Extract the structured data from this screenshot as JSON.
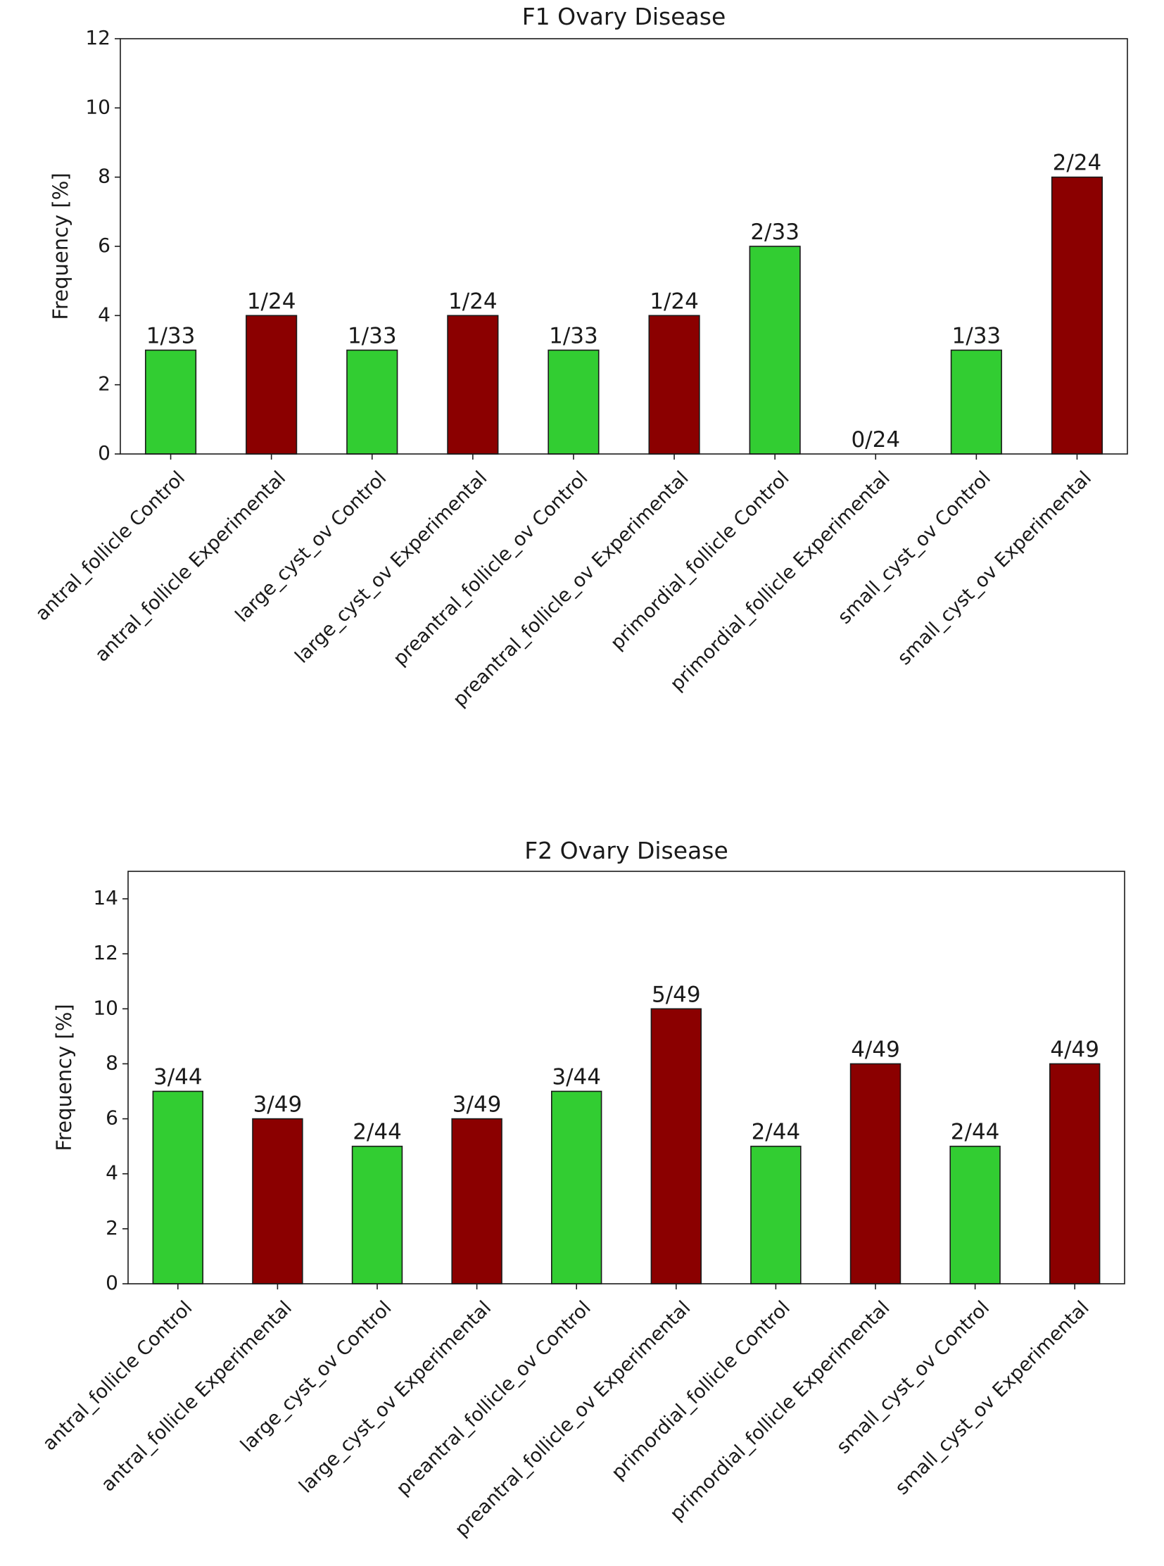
{
  "chart_data": [
    {
      "type": "bar",
      "title": "F1 Ovary Disease",
      "xlabel": "",
      "ylabel": "Frequency [%]",
      "ylim": [
        0,
        12
      ],
      "yticks": [
        0,
        2,
        4,
        6,
        8,
        10,
        12
      ],
      "grid": false,
      "categories": [
        "antral_follicle Control",
        "antral_follicle Experimental",
        "large_cyst_ov Control",
        "large_cyst_ov Experimental",
        "preantral_follicle_ov Control",
        "preantral_follicle_ov Experimental",
        "primordial_follicle Control",
        "primordial_follicle Experimental",
        "small_cyst_ov Control",
        "small_cyst_ov Experimental"
      ],
      "values": [
        3,
        4,
        3,
        4,
        3,
        4,
        6,
        0,
        3,
        8
      ],
      "groups": [
        "Control",
        "Experimental",
        "Control",
        "Experimental",
        "Control",
        "Experimental",
        "Control",
        "Experimental",
        "Control",
        "Experimental"
      ],
      "data_labels": [
        "1/33",
        "1/24",
        "1/33",
        "1/24",
        "1/33",
        "1/24",
        "2/33",
        "0/24",
        "1/33",
        "2/24"
      ]
    },
    {
      "type": "bar",
      "title": "F2 Ovary Disease",
      "xlabel": "",
      "ylabel": "Frequency [%]",
      "ylim": [
        0,
        15
      ],
      "yticks": [
        0,
        2,
        4,
        6,
        8,
        10,
        12,
        14
      ],
      "grid": false,
      "categories": [
        "antral_follicle Control",
        "antral_follicle Experimental",
        "large_cyst_ov Control",
        "large_cyst_ov Experimental",
        "preantral_follicle_ov Control",
        "preantral_follicle_ov Experimental",
        "primordial_follicle Control",
        "primordial_follicle Experimental",
        "small_cyst_ov Control",
        "small_cyst_ov Experimental"
      ],
      "values": [
        7,
        6,
        5,
        6,
        7,
        10,
        5,
        8,
        5,
        8
      ],
      "groups": [
        "Control",
        "Experimental",
        "Control",
        "Experimental",
        "Control",
        "Experimental",
        "Control",
        "Experimental",
        "Control",
        "Experimental"
      ],
      "data_labels": [
        "3/44",
        "3/49",
        "2/44",
        "3/49",
        "3/44",
        "5/49",
        "2/44",
        "4/49",
        "2/44",
        "4/49"
      ]
    }
  ],
  "colors": {
    "Control": "#32cd32",
    "Experimental": "#8b0000",
    "axis": "#1a1a1a"
  }
}
